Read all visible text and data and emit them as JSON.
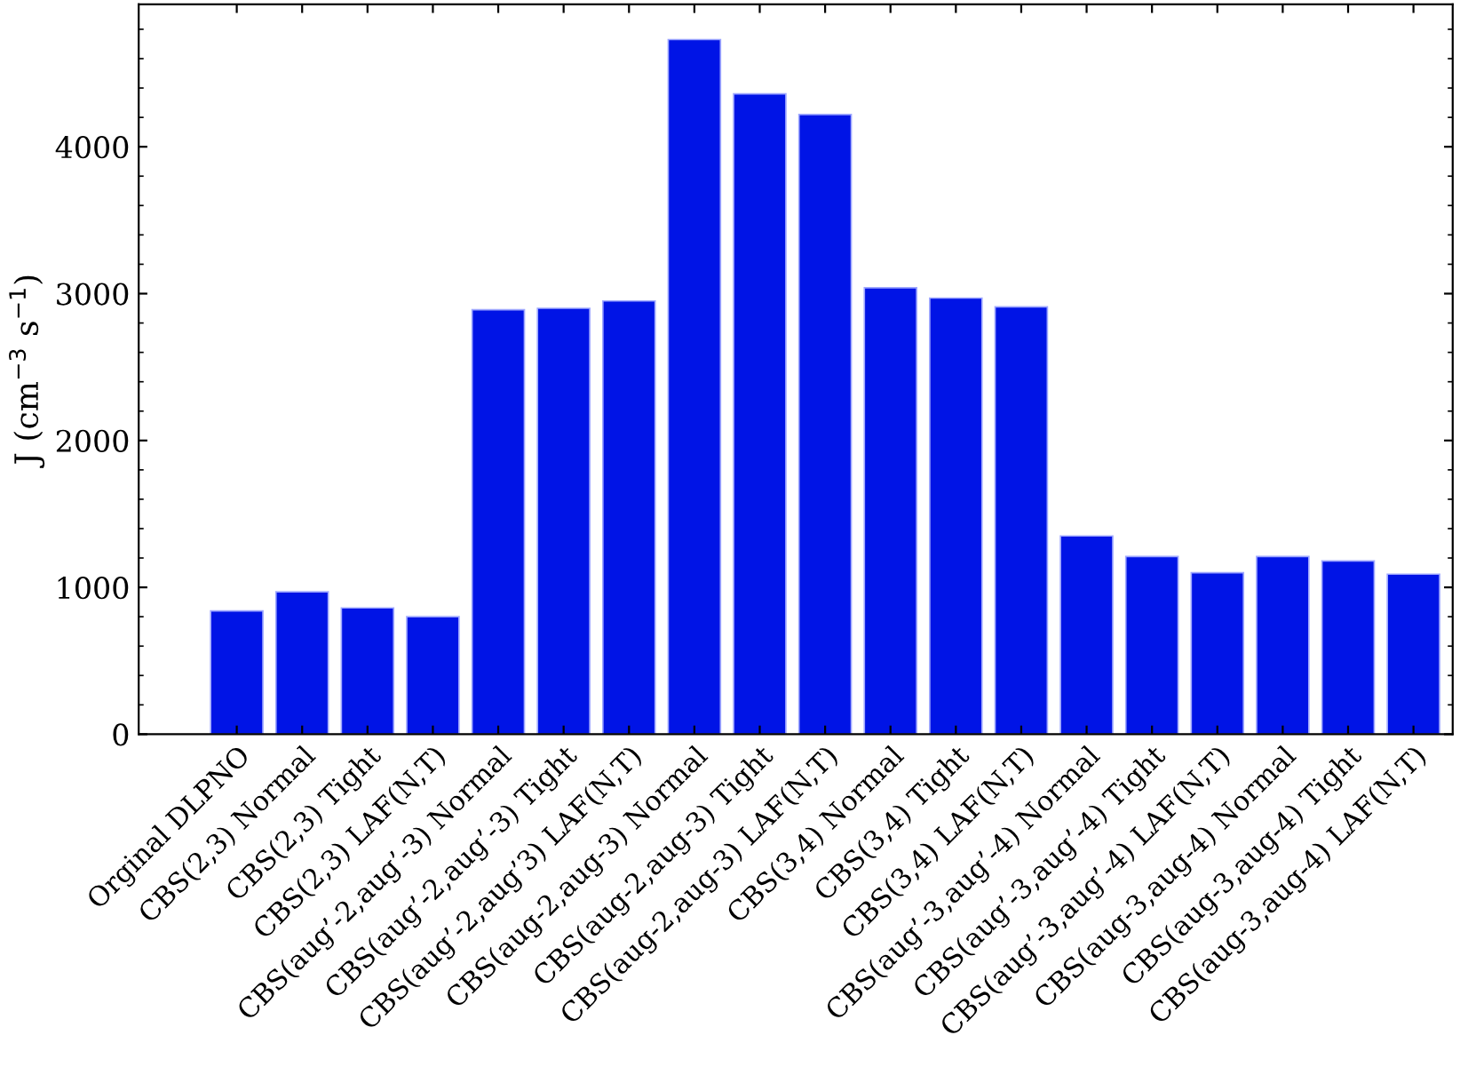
{
  "chart_data": {
    "type": "bar",
    "ylabel": "J (cm$^{−3}$ s$^{−1}$)",
    "categories": [
      "Orginal DLPNO",
      "CBS(2,3) Normal",
      "CBS(2,3) Tight",
      "CBS(2,3) LAF(N,T)",
      "CBS(aug’-2,aug’-3) Normal",
      "CBS(aug’-2,aug’-3) Tight",
      "CBS(aug’-2,aug’3) LAF(N,T)",
      "CBS(aug-2,aug-3) Normal",
      "CBS(aug-2,aug-3) Tight",
      "CBS(aug-2,aug-3) LAF(N,T)",
      "CBS(3,4) Normal",
      "CBS(3,4) Tight",
      "CBS(3,4) LAF(N,T)",
      "CBS(aug’-3,aug’-4) Normal",
      "CBS(aug’-3,aug’-4) Tight",
      "CBS(aug’-3,aug’-4) LAF(N,T)",
      "CBS(aug-3,aug-4) Normal",
      "CBS(aug-3,aug-4) Tight",
      "CBS(aug-3,aug-4) LAF(N,T)"
    ],
    "values": [
      840,
      970,
      860,
      800,
      2890,
      2900,
      2950,
      4730,
      4360,
      4220,
      3040,
      2970,
      2910,
      1350,
      1210,
      1100,
      1210,
      1180,
      1090
    ],
    "color": "#0014e6",
    "ylim": [
      0,
      4970
    ],
    "yticks": [
      0,
      1000,
      2000,
      3000,
      4000
    ],
    "grid": false
  }
}
